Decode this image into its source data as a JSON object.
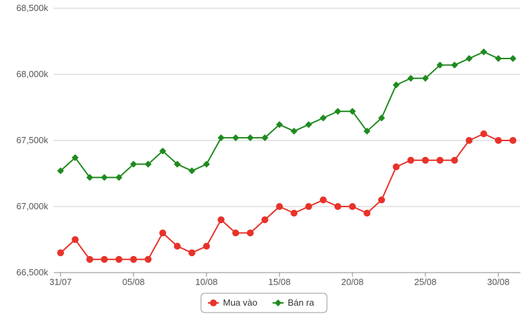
{
  "chart_data": {
    "type": "line",
    "title": "",
    "xlabel": "",
    "ylabel": "",
    "x": [
      "31/07",
      "01/08",
      "02/08",
      "03/08",
      "04/08",
      "05/08",
      "06/08",
      "07/08",
      "08/08",
      "09/08",
      "10/08",
      "11/08",
      "12/08",
      "13/08",
      "14/08",
      "15/08",
      "16/08",
      "17/08",
      "18/08",
      "19/08",
      "20/08",
      "21/08",
      "22/08",
      "23/08",
      "24/08",
      "25/08",
      "26/08",
      "27/08",
      "28/08",
      "29/08",
      "30/08",
      "31/08"
    ],
    "x_tick_labels": [
      "31/07",
      "05/08",
      "10/08",
      "15/08",
      "20/08",
      "25/08",
      "30/08"
    ],
    "y_tick_labels": [
      "66,500k",
      "67,000k",
      "67,500k",
      "68,000k",
      "68,500k"
    ],
    "ylim": [
      66500,
      68500
    ],
    "grid": true,
    "legend_position": "bottom-center",
    "series": [
      {
        "name": "Mua vào",
        "color": "#e8322a",
        "marker": "circle",
        "values": [
          66650,
          66750,
          66600,
          66600,
          66600,
          66600,
          66600,
          66800,
          66700,
          66650,
          66700,
          66900,
          66800,
          66800,
          66900,
          67000,
          66950,
          67000,
          67050,
          67000,
          67000,
          66950,
          67050,
          67300,
          67350,
          67350,
          67350,
          67350,
          67500,
          67550,
          67500,
          67500
        ]
      },
      {
        "name": "Bán ra",
        "color": "#1f8a1f",
        "marker": "diamond",
        "values": [
          67270,
          67370,
          67220,
          67220,
          67220,
          67320,
          67320,
          67420,
          67320,
          67270,
          67320,
          67520,
          67520,
          67520,
          67520,
          67620,
          67570,
          67620,
          67670,
          67720,
          67720,
          67570,
          67670,
          67920,
          67970,
          67970,
          68070,
          68070,
          68120,
          68170,
          68120,
          68120
        ]
      }
    ]
  },
  "colors": {
    "grid": "#cccccc",
    "axis": "#888888",
    "legend_border": "#999999"
  }
}
